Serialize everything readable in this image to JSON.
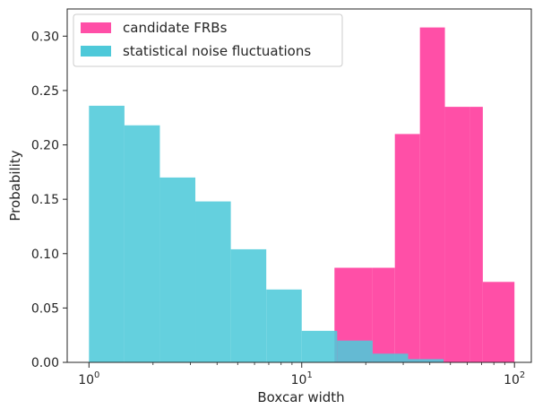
{
  "chart_data": {
    "type": "bar",
    "xlabel": "Boxcar width",
    "ylabel": "Probability",
    "xscale": "log",
    "xlim": [
      0.79,
      120
    ],
    "ylim": [
      0,
      0.325
    ],
    "grid": false,
    "legend_position": "top-left",
    "x_ticks": [
      {
        "value": 1,
        "mantissa": "10",
        "exponent": "0"
      },
      {
        "value": 10,
        "mantissa": "10",
        "exponent": "1"
      },
      {
        "value": 100,
        "mantissa": "10",
        "exponent": "2"
      }
    ],
    "y_ticks": [
      "0.00",
      "0.05",
      "0.10",
      "0.15",
      "0.20",
      "0.25",
      "0.30"
    ],
    "series": [
      {
        "name": "statistical noise fluctuations",
        "color": "#4ec9d9",
        "edges": [
          1.0,
          1.468,
          2.154,
          3.162,
          4.642,
          6.813,
          10.0,
          14.68,
          21.54,
          31.62,
          46.42
        ],
        "values": [
          0.236,
          0.218,
          0.17,
          0.148,
          0.104,
          0.067,
          0.029,
          0.02,
          0.008,
          0.003
        ]
      },
      {
        "name": "candidate FRBs",
        "color": "#ff4fa7",
        "edges": [
          14.25,
          21.54,
          27.4,
          35.94,
          47.1,
          61.8,
          71.0,
          100.0
        ],
        "values": [
          0.087,
          0.087,
          0.21,
          0.308,
          0.235,
          0.235,
          0.074
        ]
      }
    ]
  }
}
